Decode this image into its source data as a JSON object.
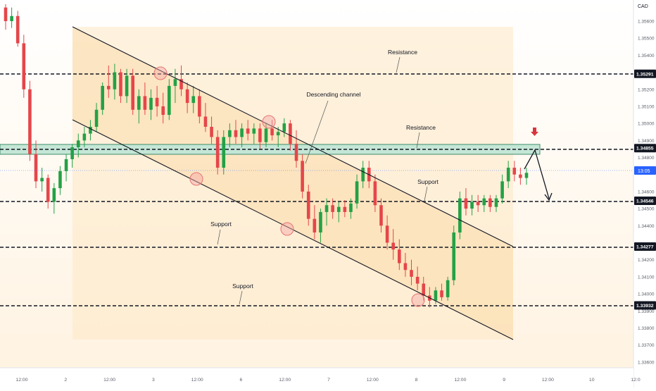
{
  "chart_data": {
    "type": "candlestick",
    "currency": "CAD",
    "y_ticks": [
      "1.35600",
      "1.35500",
      "1.35400",
      "1.35200",
      "1.35100",
      "1.35000",
      "1.34900",
      "1.34800",
      "1.34600",
      "1.34500",
      "1.34400",
      "1.34200",
      "1.34100",
      "1.34000",
      "1.33900",
      "1.33800",
      "1.33700",
      "1.33600"
    ],
    "x_ticks": [
      "12:00",
      "2",
      "12:00",
      "3",
      "12:00",
      "6",
      "12:00",
      "7",
      "12:00",
      "8",
      "12:00",
      "9",
      "12:00",
      "10",
      "12:0"
    ],
    "price_levels": [
      {
        "price": "1.35291",
        "type": "resistance"
      },
      {
        "price": "1.34855",
        "type": "resistance"
      },
      {
        "price": "1.34546",
        "type": "support"
      },
      {
        "price": "1.34277",
        "type": "support"
      },
      {
        "price": "1.33932",
        "type": "support"
      }
    ],
    "current_price": "1.34700",
    "current_time": "13:05",
    "annotations": [
      "Resistance",
      "Resistance",
      "Descending channel",
      "Support",
      "Support",
      "Support"
    ],
    "resistance_zone": [
      1.3483,
      1.3488
    ],
    "candles": [
      [
        1.3568,
        1.357,
        1.3555,
        1.356
      ],
      [
        1.356,
        1.3568,
        1.3556,
        1.3563
      ],
      [
        1.3563,
        1.3566,
        1.3545,
        1.3547
      ],
      [
        1.3547,
        1.3552,
        1.3515,
        1.352
      ],
      [
        1.352,
        1.3525,
        1.3478,
        1.3482
      ],
      [
        1.3482,
        1.349,
        1.3462,
        1.3466
      ],
      [
        1.3466,
        1.3474,
        1.346,
        1.3468
      ],
      [
        1.3468,
        1.347,
        1.345,
        1.3454
      ],
      [
        1.3454,
        1.3465,
        1.3447,
        1.3462
      ],
      [
        1.3462,
        1.3475,
        1.3458,
        1.3472
      ],
      [
        1.3472,
        1.3482,
        1.3466,
        1.3479
      ],
      [
        1.3479,
        1.3488,
        1.3474,
        1.3486
      ],
      [
        1.3486,
        1.3494,
        1.348,
        1.349
      ],
      [
        1.349,
        1.3498,
        1.3486,
        1.3494
      ],
      [
        1.3494,
        1.3502,
        1.349,
        1.3498
      ],
      [
        1.3498,
        1.3512,
        1.3495,
        1.3508
      ],
      [
        1.3508,
        1.3524,
        1.3505,
        1.3522
      ],
      [
        1.3522,
        1.3534,
        1.3515,
        1.352
      ],
      [
        1.352,
        1.3535,
        1.3514,
        1.353
      ],
      [
        1.353,
        1.3532,
        1.3512,
        1.3516
      ],
      [
        1.3516,
        1.3532,
        1.3512,
        1.3528
      ],
      [
        1.3528,
        1.3532,
        1.3505,
        1.3508
      ],
      [
        1.3508,
        1.352,
        1.35,
        1.3516
      ],
      [
        1.3516,
        1.3524,
        1.3505,
        1.3508
      ],
      [
        1.3508,
        1.352,
        1.3502,
        1.3515
      ],
      [
        1.3515,
        1.3522,
        1.3504,
        1.351
      ],
      [
        1.351,
        1.3518,
        1.35,
        1.3505
      ],
      [
        1.3505,
        1.3526,
        1.3502,
        1.3522
      ],
      [
        1.3522,
        1.3532,
        1.3512,
        1.3526
      ],
      [
        1.3526,
        1.3534,
        1.3516,
        1.352
      ],
      [
        1.352,
        1.3524,
        1.3506,
        1.3512
      ],
      [
        1.3512,
        1.3522,
        1.3506,
        1.3516
      ],
      [
        1.3516,
        1.352,
        1.35,
        1.3504
      ],
      [
        1.3504,
        1.3512,
        1.3495,
        1.3498
      ],
      [
        1.3498,
        1.3504,
        1.3488,
        1.3492
      ],
      [
        1.3492,
        1.3496,
        1.347,
        1.3474
      ],
      [
        1.3474,
        1.3496,
        1.347,
        1.3492
      ],
      [
        1.3492,
        1.35,
        1.3486,
        1.3496
      ],
      [
        1.3496,
        1.3502,
        1.3488,
        1.3492
      ],
      [
        1.3492,
        1.35,
        1.3486,
        1.3497
      ],
      [
        1.3497,
        1.3502,
        1.349,
        1.3494
      ],
      [
        1.3494,
        1.35,
        1.3488,
        1.3497
      ],
      [
        1.3497,
        1.35,
        1.3485,
        1.3489
      ],
      [
        1.3489,
        1.35,
        1.3486,
        1.3497
      ],
      [
        1.3497,
        1.3502,
        1.349,
        1.3493
      ],
      [
        1.3493,
        1.3498,
        1.3486,
        1.3495
      ],
      [
        1.3495,
        1.3503,
        1.3492,
        1.35
      ],
      [
        1.35,
        1.3502,
        1.3484,
        1.3488
      ],
      [
        1.3488,
        1.3496,
        1.3474,
        1.3478
      ],
      [
        1.3478,
        1.3482,
        1.3456,
        1.346
      ],
      [
        1.346,
        1.3464,
        1.344,
        1.3444
      ],
      [
        1.3444,
        1.3452,
        1.3432,
        1.3436
      ],
      [
        1.3436,
        1.345,
        1.343,
        1.3448
      ],
      [
        1.3448,
        1.3456,
        1.344,
        1.3452
      ],
      [
        1.3452,
        1.3456,
        1.3444,
        1.3448
      ],
      [
        1.3448,
        1.3454,
        1.3442,
        1.3451
      ],
      [
        1.3451,
        1.3455,
        1.3445,
        1.3448
      ],
      [
        1.3448,
        1.3456,
        1.3444,
        1.3453
      ],
      [
        1.3453,
        1.347,
        1.345,
        1.3466
      ],
      [
        1.3466,
        1.3478,
        1.3462,
        1.3474
      ],
      [
        1.3474,
        1.3478,
        1.3462,
        1.3466
      ],
      [
        1.3466,
        1.347,
        1.3448,
        1.3452
      ],
      [
        1.3452,
        1.3456,
        1.3436,
        1.344
      ],
      [
        1.344,
        1.3446,
        1.3426,
        1.343
      ],
      [
        1.343,
        1.3438,
        1.342,
        1.3426
      ],
      [
        1.3426,
        1.3432,
        1.3414,
        1.3418
      ],
      [
        1.3418,
        1.3424,
        1.341,
        1.3414
      ],
      [
        1.3414,
        1.342,
        1.3405,
        1.341
      ],
      [
        1.341,
        1.3416,
        1.3402,
        1.3406
      ],
      [
        1.3406,
        1.341,
        1.3396,
        1.3399
      ],
      [
        1.3399,
        1.3404,
        1.3392,
        1.3396
      ],
      [
        1.3396,
        1.3404,
        1.3394,
        1.3402
      ],
      [
        1.3402,
        1.3406,
        1.3396,
        1.3398
      ],
      [
        1.3398,
        1.341,
        1.3396,
        1.3408
      ],
      [
        1.3408,
        1.344,
        1.3405,
        1.3436
      ],
      [
        1.3436,
        1.346,
        1.3432,
        1.3456
      ],
      [
        1.3456,
        1.3462,
        1.3446,
        1.345
      ],
      [
        1.345,
        1.3458,
        1.3446,
        1.3454
      ],
      [
        1.3454,
        1.3458,
        1.3448,
        1.3452
      ],
      [
        1.3452,
        1.3458,
        1.3448,
        1.3456
      ],
      [
        1.3456,
        1.3458,
        1.3448,
        1.3451
      ],
      [
        1.3451,
        1.3458,
        1.3448,
        1.3456
      ],
      [
        1.3456,
        1.347,
        1.3453,
        1.3466
      ],
      [
        1.3466,
        1.3478,
        1.3462,
        1.3474
      ],
      [
        1.3474,
        1.3478,
        1.3466,
        1.347
      ],
      [
        1.347,
        1.3474,
        1.3464,
        1.3468
      ],
      [
        1.3468,
        1.3474,
        1.3464,
        1.3471
      ]
    ]
  }
}
